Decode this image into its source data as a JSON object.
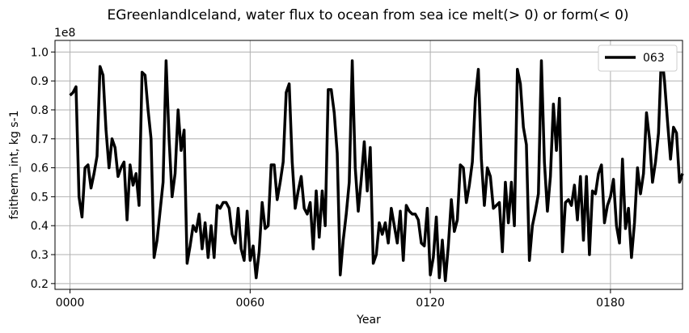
{
  "chart_data": {
    "type": "line",
    "title": "EGreenlandIceland, water flux to ocean from sea ice melt(> 0) or form(< 0)",
    "xlabel": "Year",
    "ylabel": "fsitherm_int, kg s-1",
    "y_offset_label": "1e8",
    "xlim": [
      -5,
      204
    ],
    "ylim": [
      0.18,
      1.04
    ],
    "x_ticks": [
      0,
      60,
      120,
      180
    ],
    "x_tick_labels": [
      "0000",
      "0060",
      "0120",
      "0180"
    ],
    "y_ticks": [
      0.2,
      0.3,
      0.4,
      0.5,
      0.6,
      0.7,
      0.8,
      0.9,
      1.0
    ],
    "y_tick_labels": [
      "0.2",
      "0.3",
      "0.4",
      "0.5",
      "0.6",
      "0.7",
      "0.8",
      "0.9",
      "1.0"
    ],
    "grid": true,
    "legend_position": "top-right",
    "series": [
      {
        "name": "063",
        "color": "#000000",
        "x_start": 0,
        "x_step": 1,
        "values": [
          0.85,
          0.86,
          0.88,
          0.5,
          0.43,
          0.6,
          0.61,
          0.53,
          0.58,
          0.64,
          0.95,
          0.92,
          0.73,
          0.6,
          0.7,
          0.67,
          0.57,
          0.6,
          0.62,
          0.42,
          0.61,
          0.54,
          0.58,
          0.47,
          0.93,
          0.92,
          0.8,
          0.7,
          0.29,
          0.35,
          0.45,
          0.55,
          0.97,
          0.7,
          0.5,
          0.58,
          0.8,
          0.66,
          0.73,
          0.27,
          0.33,
          0.4,
          0.38,
          0.44,
          0.32,
          0.41,
          0.29,
          0.4,
          0.29,
          0.47,
          0.46,
          0.48,
          0.48,
          0.46,
          0.37,
          0.34,
          0.46,
          0.32,
          0.28,
          0.45,
          0.28,
          0.33,
          0.22,
          0.31,
          0.48,
          0.39,
          0.4,
          0.61,
          0.61,
          0.49,
          0.55,
          0.62,
          0.86,
          0.89,
          0.62,
          0.46,
          0.52,
          0.57,
          0.46,
          0.44,
          0.48,
          0.32,
          0.52,
          0.36,
          0.52,
          0.4,
          0.87,
          0.87,
          0.79,
          0.65,
          0.23,
          0.35,
          0.44,
          0.55,
          0.97,
          0.6,
          0.45,
          0.56,
          0.69,
          0.52,
          0.67,
          0.27,
          0.3,
          0.41,
          0.37,
          0.41,
          0.34,
          0.46,
          0.4,
          0.34,
          0.45,
          0.28,
          0.47,
          0.45,
          0.44,
          0.44,
          0.42,
          0.34,
          0.33,
          0.46,
          0.23,
          0.29,
          0.43,
          0.22,
          0.35,
          0.21,
          0.33,
          0.49,
          0.38,
          0.42,
          0.61,
          0.6,
          0.48,
          0.54,
          0.62,
          0.84,
          0.94,
          0.63,
          0.47,
          0.6,
          0.57,
          0.46,
          0.47,
          0.48,
          0.31,
          0.55,
          0.41,
          0.55,
          0.4,
          0.94,
          0.89,
          0.74,
          0.68,
          0.28,
          0.4,
          0.45,
          0.51,
          0.97,
          0.62,
          0.45,
          0.57,
          0.82,
          0.66,
          0.84,
          0.31,
          0.48,
          0.49,
          0.47,
          0.54,
          0.42,
          0.57,
          0.35,
          0.57,
          0.3,
          0.52,
          0.51,
          0.58,
          0.61,
          0.41,
          0.47,
          0.5,
          0.56,
          0.4,
          0.34,
          0.63,
          0.39,
          0.46,
          0.29,
          0.41,
          0.6,
          0.51,
          0.58,
          0.79,
          0.7,
          0.55,
          0.62,
          0.72,
          1.0,
          0.9,
          0.76,
          0.63,
          0.74,
          0.72,
          0.55,
          0.58
        ]
      }
    ]
  }
}
